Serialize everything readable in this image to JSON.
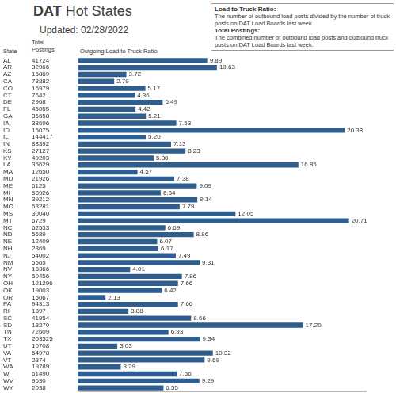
{
  "chart_data": {
    "type": "bar",
    "orientation": "horizontal",
    "title": "DAT Hot States",
    "subtitle": "Updated: 02/28/2022",
    "category_label": "State",
    "postings_label": "Total Postings",
    "x_label": "Outgoing Load to Truck Ratio",
    "notes": [
      {
        "title": "Load to Truck Ratio:",
        "text": "The number of outbound load posts divided by the number of truck posts on DAT Load Boards last week."
      },
      {
        "title": "Total Postings:",
        "text": "The combined number of outbound load posts and outbound truck posts on DAT Load Boards last week."
      }
    ],
    "categories": [
      "AL",
      "AR",
      "AZ",
      "CA",
      "CO",
      "CT",
      "DE",
      "FL",
      "GA",
      "IA",
      "ID",
      "IL",
      "IN",
      "KS",
      "KY",
      "LA",
      "MA",
      "MD",
      "ME",
      "MI",
      "MN",
      "MO",
      "MS",
      "MT",
      "NC",
      "ND",
      "NE",
      "NH",
      "NJ",
      "NM",
      "NV",
      "NY",
      "OH",
      "OK",
      "OR",
      "PA",
      "RI",
      "SC",
      "SD",
      "TN",
      "TX",
      "UT",
      "VA",
      "VT",
      "WA",
      "WI",
      "WV",
      "WY"
    ],
    "postings": [
      41724,
      32966,
      15869,
      73882,
      16979,
      7642,
      2968,
      45055,
      86658,
      38696,
      15075,
      144417,
      88392,
      27127,
      49203,
      35629,
      12650,
      21926,
      6125,
      58926,
      39212,
      63281,
      30040,
      6729,
      62533,
      5689,
      12409,
      2869,
      54002,
      5565,
      13366,
      50456,
      121296,
      19003,
      15067,
      94313,
      1897,
      41954,
      13270,
      72609,
      203525,
      10708,
      54978,
      2374,
      19789,
      61490,
      9630,
      2038
    ],
    "values": [
      9.89,
      10.63,
      3.72,
      2.79,
      5.17,
      4.36,
      6.49,
      4.42,
      5.21,
      7.53,
      20.38,
      5.2,
      7.13,
      8.23,
      5.8,
      16.85,
      4.57,
      7.38,
      9.09,
      6.34,
      9.14,
      7.79,
      12.05,
      20.71,
      6.69,
      8.86,
      6.07,
      6.17,
      7.49,
      9.31,
      4.01,
      7.96,
      7.66,
      6.42,
      2.13,
      7.66,
      3.88,
      8.66,
      17.2,
      6.93,
      9.34,
      3.03,
      10.32,
      9.69,
      3.29,
      7.56,
      9.29,
      6.55
    ],
    "value_labels": [
      "9.89",
      "10.63",
      "3.72",
      "2.79",
      "5.17",
      "4.36",
      "6.49",
      "4.42",
      "5.21",
      "7.53",
      "20.38",
      "5.20",
      "7.13",
      "8.23",
      "5.80",
      "16.85",
      "4.57",
      "7.38",
      "9.09",
      "6.34",
      "9.14",
      "7.79",
      "12.05",
      "20.71",
      "6.69",
      "8.86",
      "6.07",
      "6.17",
      "7.49",
      "9.31",
      "4.01",
      "7.96",
      "7.66",
      "6.42",
      "2.13",
      "7.66",
      "3.88",
      "8.66",
      "17.20",
      "6.93",
      "9.34",
      "3.03",
      "10.32",
      "9.69",
      "3.29",
      "7.56",
      "9.29",
      "6.55"
    ],
    "color": "#2e5d8e",
    "xlim": [
      0,
      22
    ],
    "grid": false,
    "data_labels": true,
    "tick_labels": "y"
  }
}
